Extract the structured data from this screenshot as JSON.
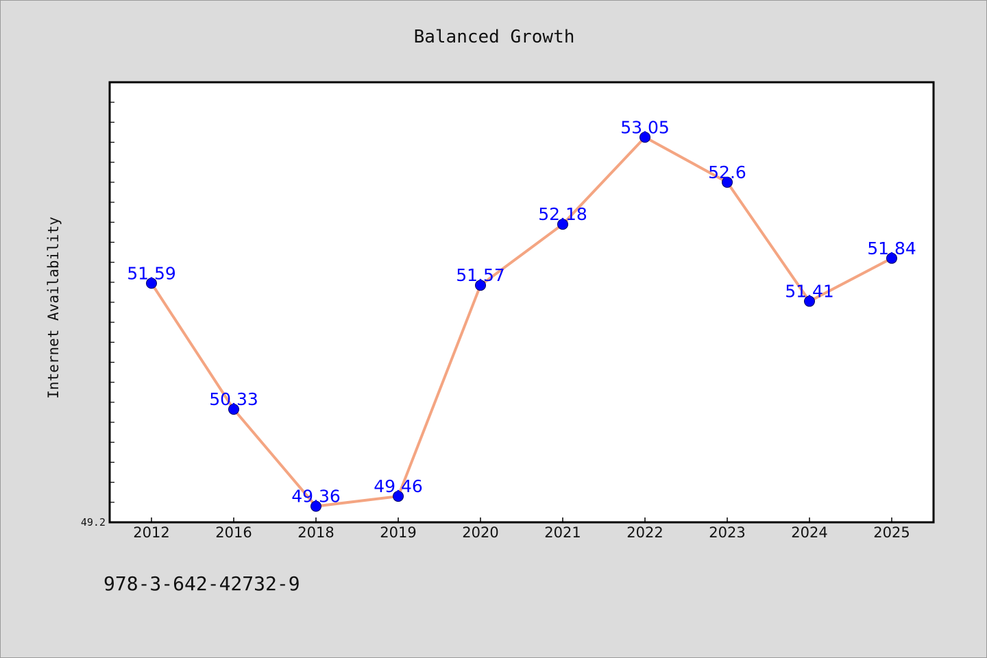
{
  "chart_data": {
    "type": "line",
    "title": "Balanced Growth",
    "xlabel": "",
    "ylabel": "Internet Availability",
    "categories": [
      "2012",
      "2016",
      "2018",
      "2019",
      "2020",
      "2021",
      "2022",
      "2023",
      "2024",
      "2025"
    ],
    "series": [
      {
        "values": [
          51.59,
          50.33,
          49.36,
          49.46,
          51.57,
          52.18,
          53.05,
          52.6,
          51.41,
          51.84
        ]
      }
    ],
    "data_labels": [
      "51.59",
      "50.33",
      "49.36",
      "49.46",
      "51.57",
      "52.18",
      "53.05",
      "52.6",
      "51.41",
      "51.84"
    ],
    "y_tick_labels": [
      "49.2"
    ],
    "ylim": [
      49.2,
      53.6
    ],
    "grid": false,
    "line_color": "#f4a582",
    "marker_color": "#0000ff",
    "label_color": "#0000ff"
  },
  "footer": {
    "isbn": "978-3-642-42732-9"
  }
}
